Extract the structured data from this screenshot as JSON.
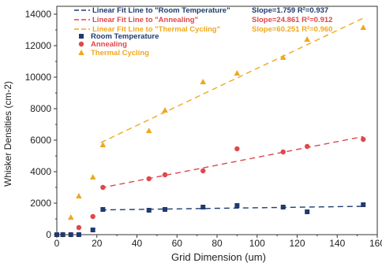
{
  "chart_data": {
    "type": "scatter",
    "xlabel": "Grid Dimension (um)",
    "ylabel": "Whisker Densities (cm-2)",
    "xlim": [
      0,
      160
    ],
    "ylim": [
      0,
      14500
    ],
    "xticks": [
      0,
      20,
      40,
      60,
      80,
      100,
      120,
      140,
      160
    ],
    "yticks": [
      0,
      2000,
      4000,
      6000,
      8000,
      10000,
      12000,
      14000
    ],
    "grid": false,
    "legend_position": "top-left",
    "series": [
      {
        "name": "Room Temperature",
        "marker": "square",
        "color": "#1f3a6e",
        "x": [
          0,
          3,
          7,
          11,
          18,
          23,
          46,
          54,
          73,
          90,
          113,
          125,
          153
        ],
        "y": [
          0,
          0,
          0,
          0,
          300,
          1600,
          1550,
          1600,
          1750,
          1850,
          1750,
          1450,
          1900
        ]
      },
      {
        "name": "Annealing",
        "marker": "circle",
        "color": "#e0474c",
        "x": [
          0,
          3,
          7,
          11,
          18,
          23,
          46,
          54,
          73,
          90,
          113,
          125,
          153
        ],
        "y": [
          0,
          0,
          0,
          450,
          1150,
          3000,
          3550,
          3800,
          4050,
          5450,
          5250,
          5600,
          6050
        ]
      },
      {
        "name": "Thermal Cycling",
        "marker": "triangle",
        "color": "#f0a81c",
        "x": [
          0,
          3,
          7,
          11,
          18,
          23,
          46,
          54,
          73,
          90,
          113,
          125,
          153
        ],
        "y": [
          0,
          0,
          1100,
          2450,
          3650,
          5700,
          6600,
          7900,
          9700,
          10250,
          11250,
          12400,
          13150
        ]
      }
    ],
    "fits": [
      {
        "label": "Linear Fit Line to \"Room Temperature\"",
        "stats": "Slope=1.759   R²=0.937",
        "color": "#1f3a6e",
        "x": [
          22,
          153
        ],
        "y": [
          1570,
          1800
        ]
      },
      {
        "label": "Linear Fit Line to \"Annealing\"",
        "stats": "Slope=24.861  R²=0.912",
        "color": "#e0474c",
        "x": [
          22,
          153
        ],
        "y": [
          2970,
          6230
        ]
      },
      {
        "label": "Linear Fit Line to \"Thermal Cycling\"",
        "stats": "Slope=60.251  R²=0.960",
        "color": "#f0a81c",
        "x": [
          22,
          153
        ],
        "y": [
          5850,
          13750
        ]
      }
    ]
  }
}
